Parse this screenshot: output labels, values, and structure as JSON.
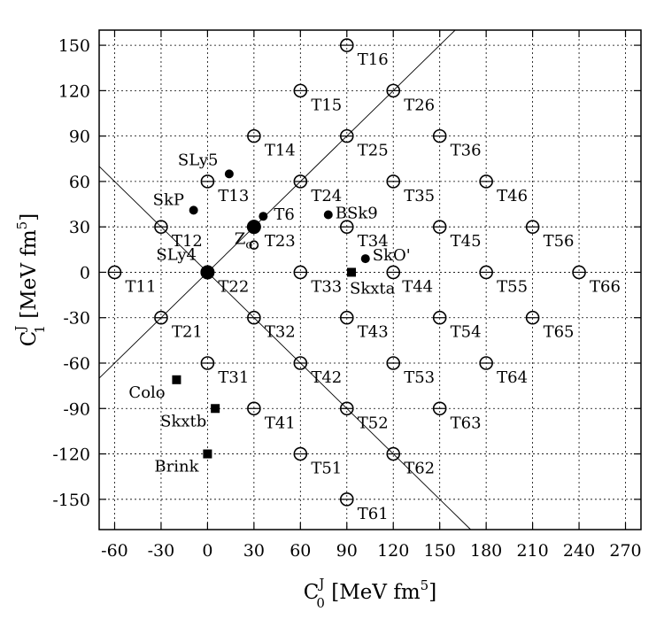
{
  "chart_data": {
    "type": "scatter",
    "title": "",
    "xlabel": {
      "main": "C",
      "sup": "J",
      "sub": "0",
      "unit": " [MeV fm",
      "unit_sup": "5",
      "unit_close": "]"
    },
    "ylabel": {
      "main": "C",
      "sup": "J",
      "sub": "1",
      "unit": " [MeV fm",
      "unit_sup": "5",
      "unit_close": "]"
    },
    "xlim": [
      -70,
      280
    ],
    "ylim": [
      -170,
      160
    ],
    "xticks": [
      -60,
      -30,
      0,
      30,
      60,
      90,
      120,
      150,
      180,
      210,
      240,
      270
    ],
    "yticks": [
      -150,
      -120,
      -90,
      -60,
      -30,
      0,
      30,
      60,
      90,
      120,
      150
    ],
    "grid": true,
    "guide_lines": [
      {
        "x1": -70,
        "y1": -70,
        "x2": 160,
        "y2": 160
      },
      {
        "x1": -70,
        "y1": 70,
        "x2": 170,
        "y2": -170
      }
    ],
    "series": [
      {
        "marker": "open-circle",
        "points": [
          {
            "x": -60,
            "y": 0,
            "label": "T11"
          },
          {
            "x": -30,
            "y": 30,
            "label": "T12"
          },
          {
            "x": 0,
            "y": 60,
            "label": "T13"
          },
          {
            "x": 30,
            "y": 90,
            "label": "T14"
          },
          {
            "x": 60,
            "y": 120,
            "label": "T15"
          },
          {
            "x": 90,
            "y": 150,
            "label": "T16"
          },
          {
            "x": -30,
            "y": -30,
            "label": "T21"
          },
          {
            "x": 0,
            "y": 0,
            "label": "T22"
          },
          {
            "x": 30,
            "y": 30,
            "label": "T23"
          },
          {
            "x": 60,
            "y": 60,
            "label": "T24"
          },
          {
            "x": 90,
            "y": 90,
            "label": "T25"
          },
          {
            "x": 120,
            "y": 120,
            "label": "T26"
          },
          {
            "x": 0,
            "y": -60,
            "label": "T31"
          },
          {
            "x": 30,
            "y": -30,
            "label": "T32"
          },
          {
            "x": 60,
            "y": 0,
            "label": "T33"
          },
          {
            "x": 90,
            "y": 30,
            "label": "T34"
          },
          {
            "x": 120,
            "y": 60,
            "label": "T35"
          },
          {
            "x": 150,
            "y": 90,
            "label": "T36"
          },
          {
            "x": 30,
            "y": -90,
            "label": "T41"
          },
          {
            "x": 60,
            "y": -60,
            "label": "T42"
          },
          {
            "x": 90,
            "y": -30,
            "label": "T43"
          },
          {
            "x": 120,
            "y": 0,
            "label": "T44"
          },
          {
            "x": 150,
            "y": 30,
            "label": "T45"
          },
          {
            "x": 180,
            "y": 60,
            "label": "T46"
          },
          {
            "x": 60,
            "y": -120,
            "label": "T51"
          },
          {
            "x": 90,
            "y": -90,
            "label": "T52"
          },
          {
            "x": 120,
            "y": -60,
            "label": "T53"
          },
          {
            "x": 150,
            "y": -30,
            "label": "T54"
          },
          {
            "x": 180,
            "y": 0,
            "label": "T55"
          },
          {
            "x": 210,
            "y": 30,
            "label": "T56"
          },
          {
            "x": 90,
            "y": -150,
            "label": "T61"
          },
          {
            "x": 120,
            "y": -120,
            "label": "T62"
          },
          {
            "x": 150,
            "y": -90,
            "label": "T63"
          },
          {
            "x": 180,
            "y": -60,
            "label": "T64"
          },
          {
            "x": 210,
            "y": -30,
            "label": "T65"
          },
          {
            "x": 240,
            "y": 0,
            "label": "T66"
          },
          {
            "x": 30,
            "y": 18,
            "label": "Z",
            "label_sub": "σ",
            "small": true
          }
        ]
      },
      {
        "marker": "filled-circle",
        "points": [
          {
            "x": 14,
            "y": 65,
            "label": "SLy5"
          },
          {
            "x": -9,
            "y": 41,
            "label": "SkP"
          },
          {
            "x": 36,
            "y": 37,
            "label": "T6"
          },
          {
            "x": 78,
            "y": 38,
            "label": "BSk9"
          },
          {
            "x": 102,
            "y": 9,
            "label": "SkO'"
          },
          {
            "x": 0,
            "y": 0,
            "label": "SLy4",
            "large": true
          },
          {
            "x": 30,
            "y": 30,
            "label": "",
            "large": true
          }
        ]
      },
      {
        "marker": "filled-square",
        "points": [
          {
            "x": 93,
            "y": 0,
            "label": "Skxta"
          },
          {
            "x": -20,
            "y": -71,
            "label": "Colo"
          },
          {
            "x": 5,
            "y": -90,
            "label": "Skxtb"
          },
          {
            "x": 0,
            "y": -120,
            "label": "Brink"
          }
        ]
      }
    ]
  }
}
